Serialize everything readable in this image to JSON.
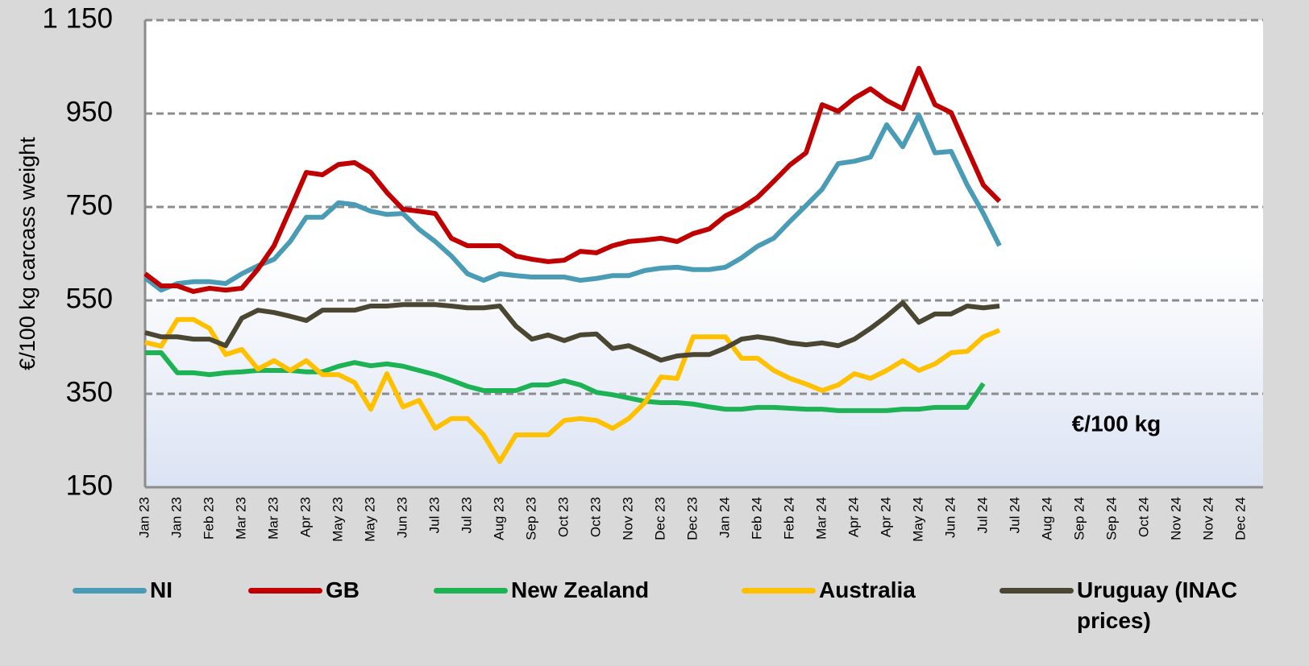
{
  "chart_data": {
    "type": "line",
    "y_label": "€/100 kg carcass weight",
    "annotation": "€/100 kg",
    "categories": [
      "Jan 23",
      null,
      "Jan 23",
      null,
      "Feb 23",
      null,
      "Mar 23",
      null,
      "Mar 23",
      null,
      "Apr 23",
      null,
      "May 23",
      null,
      "May 23",
      null,
      "Jun 23",
      null,
      "Jul 23",
      null,
      "Jul 23",
      null,
      "Aug 23",
      null,
      "Sep 23",
      null,
      "Oct 23",
      null,
      "Oct 23",
      null,
      "Nov 23",
      null,
      "Dec 23",
      null,
      "Dec 23",
      null,
      "Jan 24",
      null,
      "Feb 24",
      null,
      "Feb 24",
      null,
      "Mar 24",
      null,
      "Apr 24",
      null,
      "Apr 24",
      null,
      "May 24",
      null,
      "Jun 24",
      null,
      "Jul 24",
      null,
      "Jul 24",
      null,
      "Aug 24",
      null,
      "Sep 24",
      null,
      "Sep 24",
      null,
      "Oct 24",
      null,
      "Nov 24",
      null,
      "Nov 24",
      null,
      "Dec 24",
      null
    ],
    "series": [
      {
        "name": "NI",
        "color": "#4a9bb5",
        "values": [
          598,
          572,
          586,
          590,
          590,
          586,
          607,
          624,
          638,
          676,
          728,
          728,
          759,
          755,
          741,
          734,
          736,
          702,
          676,
          645,
          607,
          593,
          607,
          603,
          600,
          600,
          600,
          593,
          597,
          603,
          603,
          614,
          619,
          621,
          616,
          616,
          621,
          641,
          666,
          683,
          719,
          753,
          788,
          843,
          848,
          857,
          926,
          879,
          947,
          866,
          869,
          797,
          736,
          667,
          null,
          null,
          null,
          null,
          null,
          null,
          null,
          null,
          null,
          null,
          null,
          null,
          null,
          null,
          null,
          null
        ]
      },
      {
        "name": "GB",
        "color": "#c00000",
        "values": [
          607,
          581,
          581,
          569,
          576,
          572,
          576,
          617,
          667,
          745,
          824,
          819,
          841,
          845,
          824,
          781,
          745,
          741,
          736,
          683,
          667,
          667,
          667,
          645,
          638,
          633,
          636,
          655,
          652,
          667,
          676,
          679,
          683,
          676,
          693,
          703,
          731,
          748,
          771,
          805,
          840,
          866,
          969,
          955,
          983,
          1003,
          978,
          960,
          1047,
          969,
          952,
          874,
          797,
          762,
          null,
          null,
          null,
          null,
          null,
          null,
          null,
          null,
          null,
          null,
          null,
          null,
          null,
          null,
          null,
          null
        ]
      },
      {
        "name": "New Zealand",
        "color": "#1db254",
        "values": [
          438,
          438,
          395,
          395,
          391,
          395,
          397,
          400,
          400,
          400,
          397,
          397,
          409,
          417,
          410,
          414,
          409,
          400,
          391,
          379,
          366,
          357,
          357,
          357,
          369,
          369,
          378,
          369,
          353,
          348,
          341,
          334,
          331,
          331,
          328,
          322,
          317,
          317,
          321,
          321,
          319,
          317,
          317,
          314,
          314,
          314,
          314,
          317,
          317,
          321,
          321,
          321,
          372,
          null,
          null,
          null,
          null,
          null,
          null,
          null,
          null,
          null,
          null,
          null,
          null,
          null,
          null,
          null,
          null,
          null
        ]
      },
      {
        "name": "Australia",
        "color": "#ffc000",
        "values": [
          460,
          452,
          509,
          509,
          490,
          434,
          445,
          403,
          421,
          400,
          421,
          391,
          391,
          374,
          317,
          393,
          322,
          336,
          276,
          297,
          297,
          262,
          205,
          262,
          262,
          262,
          293,
          297,
          293,
          276,
          297,
          331,
          386,
          383,
          472,
          472,
          472,
          426,
          426,
          400,
          383,
          371,
          357,
          369,
          393,
          383,
          400,
          421,
          400,
          414,
          438,
          441,
          472,
          486,
          null,
          null,
          null,
          null,
          null,
          null,
          null,
          null,
          null,
          null,
          null,
          null,
          null,
          null,
          null,
          null
        ]
      },
      {
        "name": "Uruguay (INAC prices)",
        "color": "#4a4632",
        "values": [
          481,
          472,
          472,
          467,
          467,
          453,
          512,
          529,
          524,
          516,
          507,
          529,
          529,
          529,
          538,
          538,
          541,
          541,
          541,
          538,
          534,
          534,
          538,
          495,
          467,
          476,
          464,
          476,
          478,
          447,
          453,
          438,
          422,
          431,
          434,
          434,
          448,
          467,
          472,
          467,
          459,
          455,
          459,
          453,
          467,
          490,
          516,
          545,
          503,
          521,
          521,
          538,
          534,
          538,
          null,
          null,
          null,
          null,
          null,
          null,
          null,
          null,
          null,
          null,
          null,
          null,
          null,
          null,
          null,
          null
        ]
      }
    ],
    "ylim": [
      150,
      1150
    ],
    "yticks": [
      150,
      350,
      550,
      750,
      950,
      {
        "value": 1150,
        "label": "1 150"
      }
    ],
    "grid": true
  }
}
